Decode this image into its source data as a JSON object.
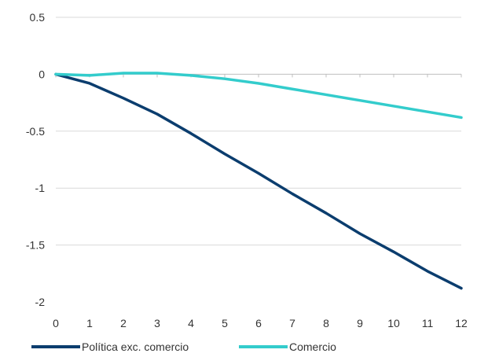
{
  "chart_data": {
    "type": "line",
    "title": "",
    "xlabel": "",
    "ylabel": "",
    "x": [
      0,
      1,
      2,
      3,
      4,
      5,
      6,
      7,
      8,
      9,
      10,
      11,
      12
    ],
    "xlim": [
      0,
      12
    ],
    "ylim": [
      -2,
      0.5
    ],
    "y_ticks": [
      "0.5",
      "0",
      "-0.5",
      "-1",
      "-1.5",
      "-2"
    ],
    "x_ticks": [
      "0",
      "1",
      "2",
      "3",
      "4",
      "5",
      "6",
      "7",
      "8",
      "9",
      "10",
      "11",
      "12"
    ],
    "grid": true,
    "legend_position": "bottom",
    "series": [
      {
        "name": "Política exc. comercio",
        "color": "#0b3d6e",
        "values": [
          0,
          -0.08,
          -0.21,
          -0.35,
          -0.52,
          -0.7,
          -0.87,
          -1.05,
          -1.22,
          -1.4,
          -1.56,
          -1.73,
          -1.88
        ]
      },
      {
        "name": "Comercio",
        "color": "#33cccc",
        "values": [
          0,
          -0.01,
          0.01,
          0.01,
          -0.01,
          -0.04,
          -0.08,
          -0.13,
          -0.18,
          -0.23,
          -0.28,
          -0.33,
          -0.38
        ]
      }
    ]
  }
}
